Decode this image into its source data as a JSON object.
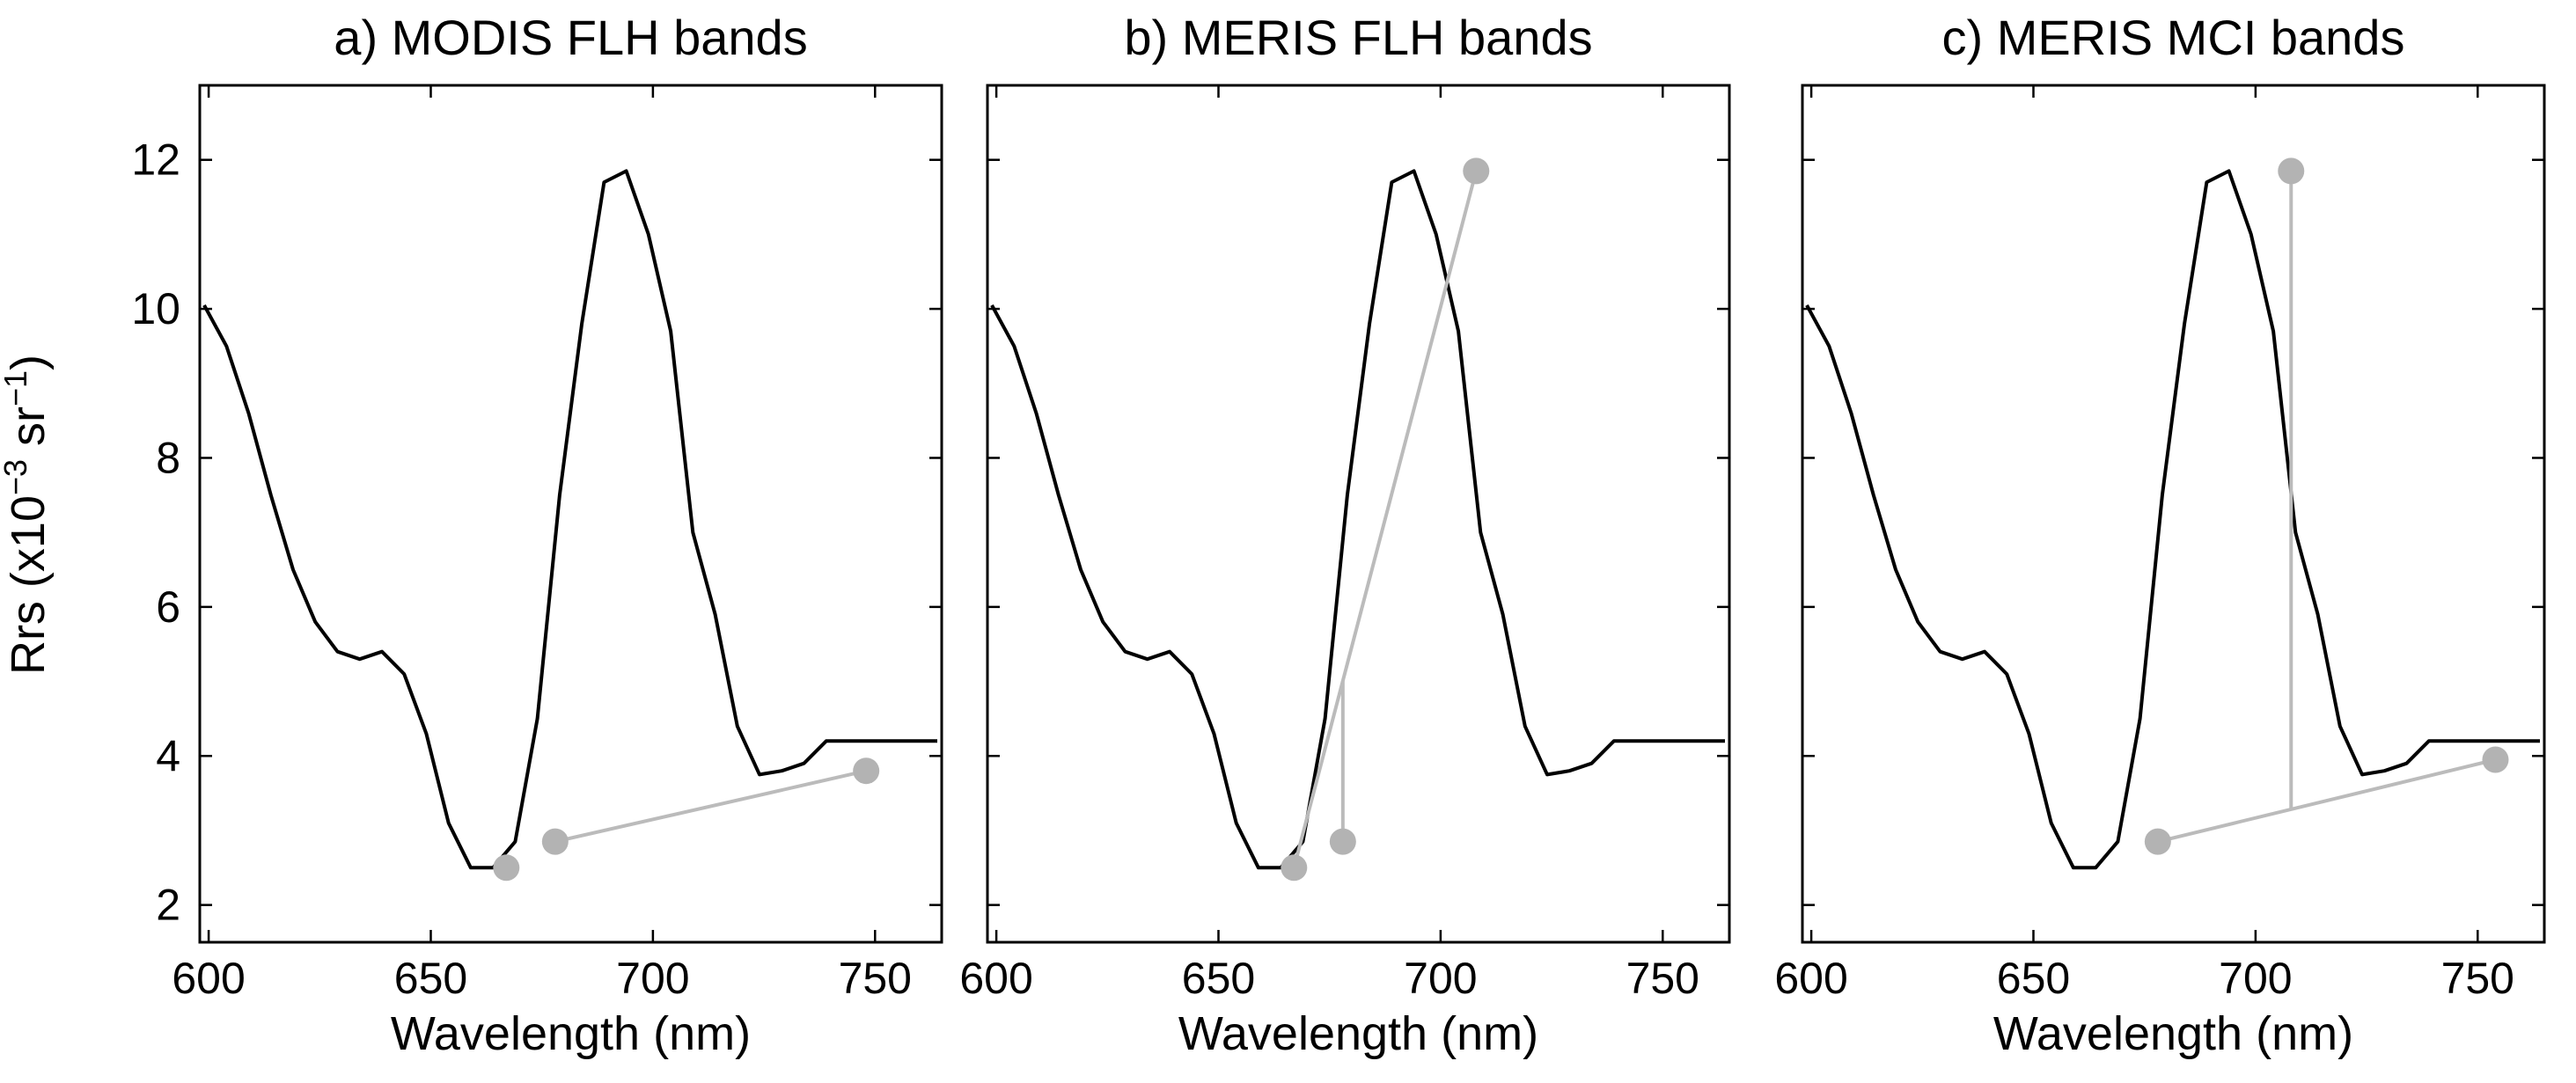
{
  "figure": {
    "ylabel_main": "Rrs (x10",
    "ylabel_exp": "−3",
    "ylabel_unit": " sr",
    "ylabel_unit_exp": "−1",
    "ylabel_close": ")"
  },
  "colors": {
    "spectrum": "#000000",
    "baseline": "#bbbbbb",
    "band_marker": "#b3b3b3"
  },
  "chart_data": [
    {
      "type": "line",
      "title": "a) MODIS FLH bands",
      "xlabel": "Wavelength (nm)",
      "ylabel": "",
      "xlim": [
        598,
        765
      ],
      "ylim": [
        1.5,
        13
      ],
      "xticks": [
        600,
        650,
        700,
        750
      ],
      "yticks": [
        2,
        4,
        6,
        8,
        10,
        12
      ],
      "grid": false,
      "series": [
        {
          "x": [
            599,
            604,
            609,
            614,
            619,
            624,
            629,
            634,
            639,
            644,
            649,
            654,
            659,
            664,
            669,
            674,
            679,
            684,
            689,
            694,
            699,
            704,
            709,
            714,
            719,
            724,
            729,
            734,
            739,
            744,
            749,
            754,
            759,
            764
          ],
          "y": [
            10.05,
            9.5,
            8.6,
            7.5,
            6.5,
            5.8,
            5.4,
            5.3,
            5.4,
            5.1,
            4.3,
            3.1,
            2.5,
            2.5,
            2.85,
            4.5,
            7.5,
            9.8,
            11.7,
            11.85,
            11.0,
            9.7,
            7.0,
            5.9,
            4.4,
            3.75,
            3.8,
            3.9,
            4.2,
            4.2,
            4.2,
            4.2,
            4.2,
            4.2
          ]
        }
      ],
      "bands": [
        {
          "x": 667,
          "y": 2.5
        },
        {
          "x": 678,
          "y": 2.85
        },
        {
          "x": 748,
          "y": 3.8
        }
      ]
    },
    {
      "type": "line",
      "title": "b) MERIS FLH bands",
      "xlabel": "Wavelength (nm)",
      "ylabel": "",
      "xlim": [
        598,
        765
      ],
      "ylim": [
        1.5,
        13
      ],
      "xticks": [
        600,
        650,
        700,
        750
      ],
      "yticks": [
        2,
        4,
        6,
        8,
        10,
        12
      ],
      "grid": false,
      "series": [
        {
          "x": [
            599,
            604,
            609,
            614,
            619,
            624,
            629,
            634,
            639,
            644,
            649,
            654,
            659,
            664,
            669,
            674,
            679,
            684,
            689,
            694,
            699,
            704,
            709,
            714,
            719,
            724,
            729,
            734,
            739,
            744,
            749,
            754,
            759,
            764
          ],
          "y": [
            10.05,
            9.5,
            8.6,
            7.5,
            6.5,
            5.8,
            5.4,
            5.3,
            5.4,
            5.1,
            4.3,
            3.1,
            2.5,
            2.5,
            2.85,
            4.5,
            7.5,
            9.8,
            11.7,
            11.85,
            11.0,
            9.7,
            7.0,
            5.9,
            4.4,
            3.75,
            3.8,
            3.9,
            4.2,
            4.2,
            4.2,
            4.2,
            4.2,
            4.2
          ]
        }
      ],
      "bands": [
        {
          "x": 667,
          "y": 2.5
        },
        {
          "x": 678,
          "y": 2.85
        },
        {
          "x": 708,
          "y": 11.85
        }
      ]
    },
    {
      "type": "line",
      "title": "c) MERIS MCI bands",
      "xlabel": "Wavelength (nm)",
      "ylabel": "",
      "xlim": [
        598,
        765
      ],
      "ylim": [
        1.5,
        13
      ],
      "xticks": [
        600,
        650,
        700,
        750
      ],
      "yticks": [
        2,
        4,
        6,
        8,
        10,
        12
      ],
      "grid": false,
      "series": [
        {
          "x": [
            599,
            604,
            609,
            614,
            619,
            624,
            629,
            634,
            639,
            644,
            649,
            654,
            659,
            664,
            669,
            674,
            679,
            684,
            689,
            694,
            699,
            704,
            709,
            714,
            719,
            724,
            729,
            734,
            739,
            744,
            749,
            754,
            759,
            764
          ],
          "y": [
            10.05,
            9.5,
            8.6,
            7.5,
            6.5,
            5.8,
            5.4,
            5.3,
            5.4,
            5.1,
            4.3,
            3.1,
            2.5,
            2.5,
            2.85,
            4.5,
            7.5,
            9.8,
            11.7,
            11.85,
            11.0,
            9.7,
            7.0,
            5.9,
            4.4,
            3.75,
            3.8,
            3.9,
            4.2,
            4.2,
            4.2,
            4.2,
            4.2,
            4.2
          ]
        }
      ],
      "bands": [
        {
          "x": 678,
          "y": 2.85
        },
        {
          "x": 708,
          "y": 11.85
        },
        {
          "x": 754,
          "y": 3.95
        }
      ]
    }
  ]
}
